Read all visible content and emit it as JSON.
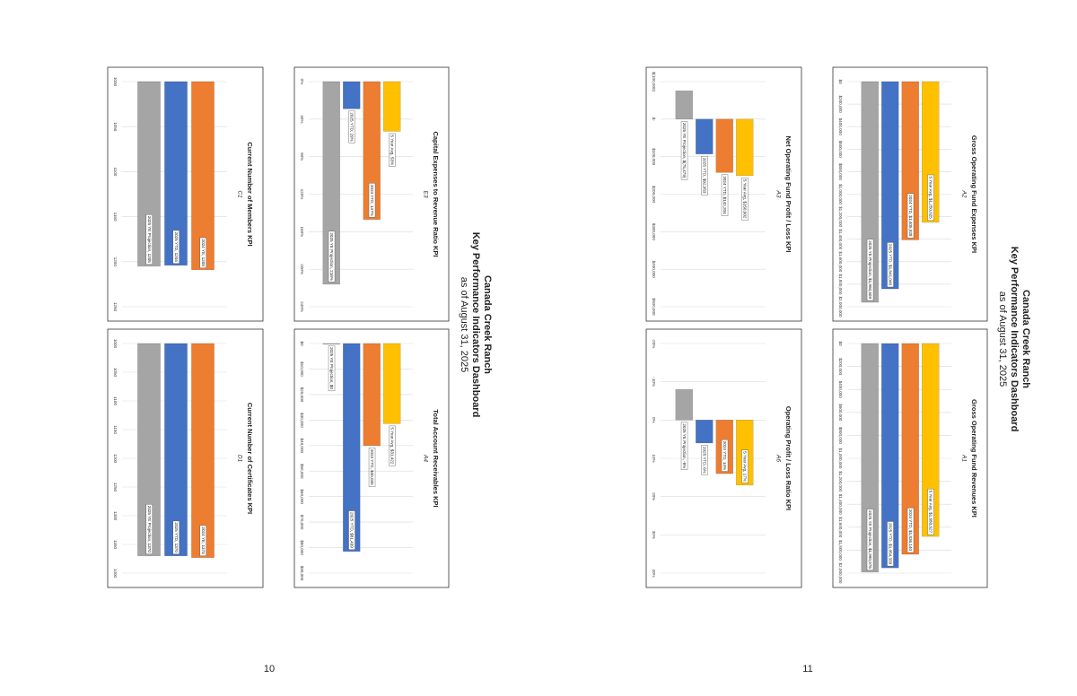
{
  "pages": [
    {
      "header": {
        "title": "Canada Creek Ranch",
        "subtitle": "Key Performance Indicators Dashboard",
        "date": "as of August 31, 2025"
      },
      "page_number": 10
    },
    {
      "header": {
        "title": "Canada Creek Ranch",
        "subtitle": "Key Performance Indicators Dashboard",
        "date": "as of August 31, 2025"
      },
      "page_number": 11
    }
  ],
  "chart_data": [
    {
      "type": "bar",
      "orientation": "horizontal",
      "title": "Gross Operating Fund Expenses KPI",
      "subtitle": "A2",
      "values": [
        1250025,
        1405928,
        1841046,
        1960609
      ],
      "value_labels": [
        "5 Year Avg, $1,250,025",
        "2024 YTD, $1,405,928",
        "2025 YTD, $1,841,046",
        "2025 YE Projection, $1,960,609"
      ],
      "colors": [
        "#ffc000",
        "#ed7d31",
        "#4472c4",
        "#a5a5a5"
      ],
      "xlim": [
        0,
        2000000
      ],
      "xticks": [
        {
          "value": 0,
          "label": "$0"
        },
        {
          "value": 200000,
          "label": "$200,000"
        },
        {
          "value": 400000,
          "label": "$400,000"
        },
        {
          "value": 600000,
          "label": "$600,000"
        },
        {
          "value": 800000,
          "label": "$800,000"
        },
        {
          "value": 1000000,
          "label": "$1,000,000"
        },
        {
          "value": 1200000,
          "label": "$1,200,000"
        },
        {
          "value": 1400000,
          "label": "$1,400,000"
        },
        {
          "value": 1600000,
          "label": "$1,600,000"
        },
        {
          "value": 1800000,
          "label": "$1,800,000"
        },
        {
          "value": 2000000,
          "label": "$2,000,000"
        }
      ],
      "grid": true
    },
    {
      "type": "bar",
      "orientation": "horizontal",
      "title": "Gross Operating Fund Revenues KPI",
      "subtitle": "A1",
      "values": [
        1680627,
        1836140,
        1954339,
        1990976
      ],
      "value_labels": [
        "5 Year Avg, $1,680,627",
        "2024 YTD, $1,836,140",
        "2025 YTD, $1,954,339",
        "2025 YE Projection, $1,990,976"
      ],
      "colors": [
        "#ffc000",
        "#ed7d31",
        "#4472c4",
        "#a5a5a5"
      ],
      "xlim": [
        0,
        2000000
      ],
      "xticks": [
        {
          "value": 0,
          "label": "$0"
        },
        {
          "value": 200000,
          "label": "$200,000"
        },
        {
          "value": 400000,
          "label": "$400,000"
        },
        {
          "value": 600000,
          "label": "$600,000"
        },
        {
          "value": 800000,
          "label": "$800,000"
        },
        {
          "value": 1000000,
          "label": "$1,000,000"
        },
        {
          "value": 1200000,
          "label": "$1,200,000"
        },
        {
          "value": 1400000,
          "label": "$1,400,000"
        },
        {
          "value": 1600000,
          "label": "$1,600,000"
        },
        {
          "value": 1800000,
          "label": "$1,800,000"
        },
        {
          "value": 2000000,
          "label": "$2,000,000"
        }
      ],
      "grid": true
    },
    {
      "type": "bar",
      "orientation": "horizontal",
      "title": "Net Operating Fund Profit / Loss KPI",
      "subtitle": "A3",
      "values": [
        150602,
        142204,
        92953,
        -75479
      ],
      "value_labels": [
        "5 Year Avg, $150,602",
        "2024 YTD, $142,204",
        "2025 YTD, $92,953",
        "2025 YE Projection, $(75,479)"
      ],
      "colors": [
        "#ffc000",
        "#ed7d31",
        "#4472c4",
        "#a5a5a5"
      ],
      "xlim": [
        -100000,
        500000
      ],
      "xticks": [
        {
          "value": -100000,
          "label": "$(100,000)"
        },
        {
          "value": 0,
          "label": "$-"
        },
        {
          "value": 100000,
          "label": "$100,000"
        },
        {
          "value": 200000,
          "label": "$200,000"
        },
        {
          "value": 300000,
          "label": "$300,000"
        },
        {
          "value": 400000,
          "label": "$400,000"
        },
        {
          "value": 500000,
          "label": "$500,000"
        }
      ],
      "grid": true
    },
    {
      "type": "bar",
      "orientation": "horizontal",
      "title": "Operating Profit / Loss Ratio KPI",
      "subtitle": "A6",
      "values": [
        17,
        14,
        6,
        -8
      ],
      "value_labels": [
        "5 Year Avg, 17%",
        "2024 YTD, 14%",
        "2025 YTD, 6%",
        "2025 YE Projection, -8%"
      ],
      "colors": [
        "#ffc000",
        "#ed7d31",
        "#4472c4",
        "#a5a5a5"
      ],
      "xlim": [
        -20,
        40
      ],
      "xticks": [
        {
          "value": -20,
          "label": "-20%"
        },
        {
          "value": -10,
          "label": "-10%"
        },
        {
          "value": 0,
          "label": "0%"
        },
        {
          "value": 10,
          "label": "10%"
        },
        {
          "value": 20,
          "label": "20%"
        },
        {
          "value": 30,
          "label": "30%"
        },
        {
          "value": 40,
          "label": "40%"
        }
      ],
      "grid": true
    },
    {
      "type": "bar",
      "orientation": "horizontal",
      "title": "Capital Expenses to Revenue Ratio KPI",
      "subtitle": "E3",
      "values": [
        53,
        147,
        29,
        216
      ],
      "value_labels": [
        "5 Year Avg, 53%",
        "2024 YTD, 147%",
        "2025 YTD, 29%",
        "2025 YE Projection, 216%"
      ],
      "colors": [
        "#ffc000",
        "#ed7d31",
        "#4472c4",
        "#a5a5a5"
      ],
      "xlim": [
        0,
        240
      ],
      "xticks": [
        {
          "value": 0,
          "label": "0%"
        },
        {
          "value": 40,
          "label": "40%"
        },
        {
          "value": 80,
          "label": "80%"
        },
        {
          "value": 120,
          "label": "120%"
        },
        {
          "value": 160,
          "label": "160%"
        },
        {
          "value": 200,
          "label": "200%"
        },
        {
          "value": 240,
          "label": "240%"
        }
      ],
      "grid": true
    },
    {
      "type": "bar",
      "orientation": "horizontal",
      "title": "Total Account Receivables KPI",
      "subtitle": "A4",
      "values": [
        31422,
        40035,
        81499,
        0
      ],
      "value_labels": [
        "5 Year Avg, $31,422",
        "2024 YTD, $40,035",
        "2025 YTD, $81,499",
        "2025 YE Projection, $0"
      ],
      "colors": [
        "#ffc000",
        "#ed7d31",
        "#4472c4",
        "#a5a5a5"
      ],
      "xlim": [
        0,
        90000
      ],
      "xticks": [
        {
          "value": 0,
          "label": "$0"
        },
        {
          "value": 10000,
          "label": "$10,000"
        },
        {
          "value": 20000,
          "label": "$20,000"
        },
        {
          "value": 30000,
          "label": "$30,000"
        },
        {
          "value": 40000,
          "label": "$40,000"
        },
        {
          "value": 50000,
          "label": "$50,000"
        },
        {
          "value": 60000,
          "label": "$60,000"
        },
        {
          "value": 70000,
          "label": "$70,000"
        },
        {
          "value": 80000,
          "label": "$80,000"
        },
        {
          "value": 90000,
          "label": "$90,000"
        }
      ],
      "grid": true
    },
    {
      "type": "bar",
      "orientation": "horizontal",
      "title": "Current Number of Members KPI",
      "subtitle": "C1",
      "values": [
        1209,
        1204,
        1205
      ],
      "value_labels": [
        "2024 YE, 1209",
        "2025 YTD, 1204",
        "2025 YE Projection, 1205"
      ],
      "colors": [
        "#ed7d31",
        "#4472c4",
        "#a5a5a5"
      ],
      "xlim": [
        1000,
        1250
      ],
      "xticks": [
        1000,
        1050,
        1100,
        1150,
        1200,
        1250
      ],
      "grid": true
    },
    {
      "type": "bar",
      "orientation": "horizontal",
      "title": "Current Number of Certificates KPI",
      "subtitle": "D1",
      "values": [
        1373,
        1370,
        1370
      ],
      "value_labels": [
        "2024 YE, 1373",
        "2025 YTD, 1370",
        "2025 YE Projection, 1370"
      ],
      "colors": [
        "#ed7d31",
        "#4472c4",
        "#a5a5a5"
      ],
      "xlim": [
        1000,
        1400
      ],
      "xticks": [
        1000,
        1050,
        1100,
        1150,
        1200,
        1250,
        1300,
        1350,
        1400
      ],
      "grid": true
    }
  ]
}
